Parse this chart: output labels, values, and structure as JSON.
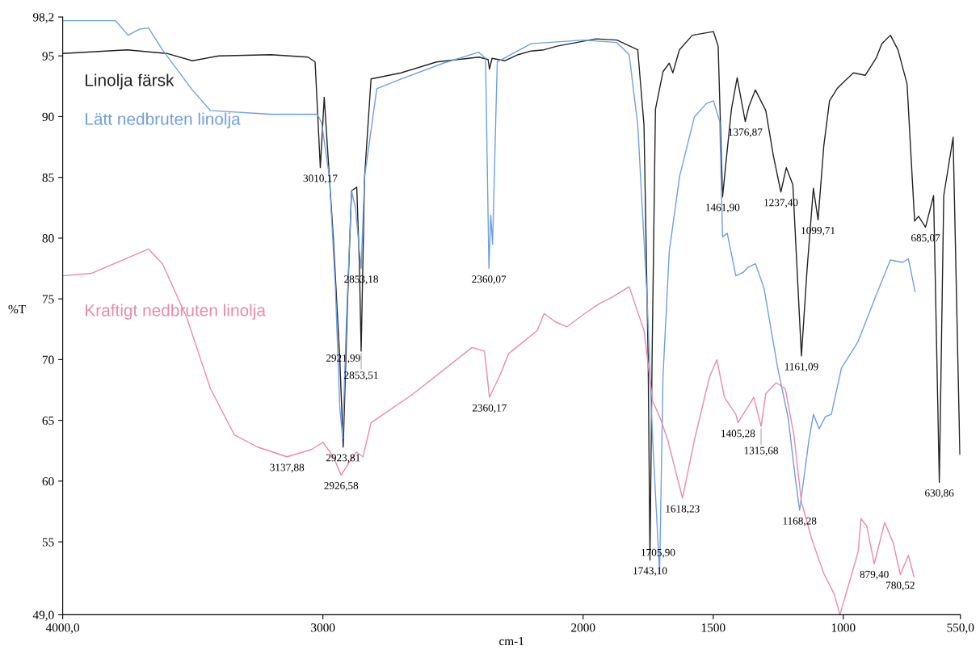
{
  "chart_data": {
    "type": "line",
    "xlabel": "cm-1",
    "ylabel": "%T",
    "xlim": [
      4000,
      550
    ],
    "ylim": [
      49,
      98.2
    ],
    "xticks": [
      {
        "value": 4000,
        "label": "4000,0"
      },
      3000,
      2000,
      1500,
      1000,
      {
        "value": 550,
        "label": "550,0"
      }
    ],
    "yticks": [
      {
        "value": 49,
        "label": "49,0"
      },
      55,
      60,
      65,
      70,
      75,
      80,
      85,
      90,
      95,
      {
        "value": 98.2,
        "label": "98,2"
      }
    ],
    "grid": false,
    "legend": false,
    "marker": "none",
    "line_style": "solid",
    "series": [
      {
        "name": "Linolja färsk",
        "color": "#222222",
        "x": [
          4000,
          3753,
          3600,
          3502,
          3400,
          3200,
          3057,
          3030,
          3010,
          2995,
          2960,
          2935,
          2922,
          2905,
          2890,
          2870,
          2860,
          2853,
          2840,
          2815,
          2700,
          2564,
          2400,
          2365,
          2360,
          2350,
          2300,
          2250,
          2200,
          2150,
          2100,
          2000,
          1950,
          1870,
          1790,
          1766,
          1750,
          1743,
          1735,
          1722,
          1693,
          1669,
          1655,
          1630,
          1580,
          1499,
          1481,
          1464,
          1453,
          1430,
          1408,
          1395,
          1377,
          1362,
          1338,
          1298,
          1269,
          1240,
          1219,
          1194,
          1161,
          1139,
          1115,
          1097,
          1075,
          1053,
          1024,
          996,
          961,
          916,
          874,
          852,
          819,
          790,
          755,
          726,
          711,
          684,
          653,
          631,
          614,
          578,
          552
        ],
        "values": [
          95.2,
          95.5,
          95.2,
          94.6,
          95.0,
          95.1,
          94.9,
          94.5,
          85.8,
          91.6,
          80,
          70,
          62.8,
          75,
          83.9,
          84.2,
          78,
          70.7,
          85,
          93.1,
          93.6,
          94.5,
          94.9,
          94.7,
          93.9,
          94.8,
          94.6,
          95.1,
          95.4,
          95.5,
          95.8,
          96.2,
          96.4,
          96.3,
          95.5,
          89.3,
          70,
          53.5,
          70,
          90.6,
          93.7,
          94.4,
          93.6,
          95.5,
          96.7,
          97.0,
          95.8,
          83.4,
          85.8,
          90.6,
          93.2,
          91.7,
          89.6,
          90.9,
          92.2,
          90.5,
          86.8,
          83.8,
          85.8,
          84.4,
          70.3,
          77.5,
          84.1,
          81.5,
          87.6,
          91.3,
          92.3,
          92.9,
          93.6,
          93.4,
          94.8,
          96.0,
          96.7,
          95.5,
          92.7,
          81.4,
          81.8,
          80.9,
          83.5,
          59.9,
          83.5,
          88.3,
          62.2
        ]
      },
      {
        "name": "Lätt nedbruten linolja",
        "color": "#6f9fe0",
        "x": [
          4000,
          3797,
          3749,
          3705,
          3670,
          3617,
          3502,
          3432,
          3203,
          3022,
          3005,
          2975,
          2952,
          2935,
          2924,
          2910,
          2890,
          2875,
          2860,
          2853,
          2840,
          2793,
          2700,
          2537,
          2401,
          2375,
          2362,
          2355,
          2348,
          2330,
          2200,
          2000,
          1870,
          1823,
          1790,
          1755,
          1733,
          1706,
          1693,
          1669,
          1629,
          1572,
          1525,
          1499,
          1475,
          1464,
          1446,
          1413,
          1384,
          1366,
          1338,
          1305,
          1252,
          1212,
          1183,
          1168,
          1132,
          1115,
          1093,
          1069,
          1046,
          1007,
          943,
          874,
          819,
          772,
          750,
          724
        ],
        "values": [
          97.9,
          97.9,
          96.7,
          97.2,
          97.3,
          95.5,
          92.2,
          90.5,
          90.2,
          90.2,
          89.5,
          85,
          75.9,
          66,
          63.5,
          73,
          83.9,
          82.5,
          79,
          77.5,
          85,
          92.3,
          93.1,
          94.4,
          95.3,
          94.8,
          77.5,
          81.9,
          79.5,
          94.5,
          96.0,
          96.3,
          96.1,
          95.1,
          89.3,
          75.5,
          63.5,
          52.4,
          68.6,
          78.9,
          85.1,
          90.0,
          91.1,
          91.3,
          89.6,
          80.1,
          80.4,
          76.9,
          77.2,
          77.6,
          77.9,
          75.9,
          69.3,
          65.2,
          60.0,
          57.6,
          63.4,
          65.5,
          64.3,
          65.3,
          65.5,
          69.3,
          71.5,
          75.3,
          78.2,
          78.0,
          78.3,
          75.6
        ]
      },
      {
        "name": "Kraftigt nedbruten linolja",
        "color": "#e88aae",
        "x": [
          4000,
          3890,
          3670,
          3617,
          3524,
          3432,
          3340,
          3251,
          3138,
          3044,
          3000,
          2960,
          2930,
          2900,
          2872,
          2846,
          2815,
          2652,
          2427,
          2379,
          2360,
          2322,
          2286,
          2176,
          2150,
          2106,
          2062,
          2000,
          1938,
          1892,
          1823,
          1766,
          1733,
          1704,
          1675,
          1618,
          1572,
          1514,
          1486,
          1457,
          1413,
          1405,
          1344,
          1316,
          1298,
          1258,
          1223,
          1190,
          1161,
          1121,
          1075,
          1035,
          1013,
          971,
          943,
          932,
          910,
          881,
          841,
          808,
          781,
          750,
          728
        ],
        "values": [
          76.9,
          77.1,
          79.1,
          77.9,
          73.5,
          67.6,
          63.8,
          62.8,
          62.0,
          62.6,
          63.2,
          62.0,
          60.5,
          61.5,
          62.4,
          62.0,
          64.8,
          67.2,
          71.0,
          70.7,
          66.9,
          68.6,
          70.5,
          72.4,
          73.8,
          73.1,
          72.7,
          73.7,
          74.6,
          75.1,
          76.0,
          72.4,
          66.6,
          65.2,
          63.4,
          58.6,
          63.4,
          68.6,
          70.0,
          66.9,
          65.5,
          64.8,
          66.9,
          64.5,
          67.2,
          68.1,
          67.6,
          63.8,
          58.3,
          55.2,
          52.4,
          50.7,
          49.0,
          52.1,
          54.2,
          56.9,
          56.3,
          53.2,
          56.6,
          54.9,
          52.3,
          53.9,
          52.1
        ]
      }
    ],
    "annotations": [
      {
        "text": "3010,17",
        "x": 3010,
        "y": 85.8
      },
      {
        "text": "2853,18",
        "x": 2853,
        "y": 77.5
      },
      {
        "text": "2921,99",
        "x": 2922,
        "y": 71
      },
      {
        "text": "2853,51",
        "x": 2853,
        "y": 70.7
      },
      {
        "text": "2360,07",
        "x": 2362,
        "y": 77.5
      },
      {
        "text": "2360,17",
        "x": 2360,
        "y": 66.9
      },
      {
        "text": "3137,88",
        "x": 3138,
        "y": 62.0
      },
      {
        "text": "2923,81",
        "x": 2922,
        "y": 62.8
      },
      {
        "text": "2926,58",
        "x": 2930,
        "y": 60.5
      },
      {
        "text": "1705,90",
        "x": 1712,
        "y": 55
      },
      {
        "text": "1743,10",
        "x": 1743,
        "y": 53.5
      },
      {
        "text": "1618,23",
        "x": 1618,
        "y": 58.6
      },
      {
        "text": "1461,90",
        "x": 1464,
        "y": 83.4
      },
      {
        "text": "1376,87",
        "x": 1377,
        "y": 89.6
      },
      {
        "text": "1237,40",
        "x": 1240,
        "y": 83.8
      },
      {
        "text": "1099,71",
        "x": 1097,
        "y": 81.5
      },
      {
        "text": "1161,09",
        "x": 1161,
        "y": 70.3
      },
      {
        "text": "1405,28",
        "x": 1405,
        "y": 64.8
      },
      {
        "text": "1315,68",
        "x": 1316,
        "y": 64.5
      },
      {
        "text": "1168,28",
        "x": 1168,
        "y": 57.6
      },
      {
        "text": "685,07",
        "x": 684,
        "y": 80.9
      },
      {
        "text": "630,86",
        "x": 631,
        "y": 59.9
      },
      {
        "text": "879,40",
        "x": 881,
        "y": 53.2
      },
      {
        "text": "780,52",
        "x": 781,
        "y": 52.3
      }
    ]
  }
}
